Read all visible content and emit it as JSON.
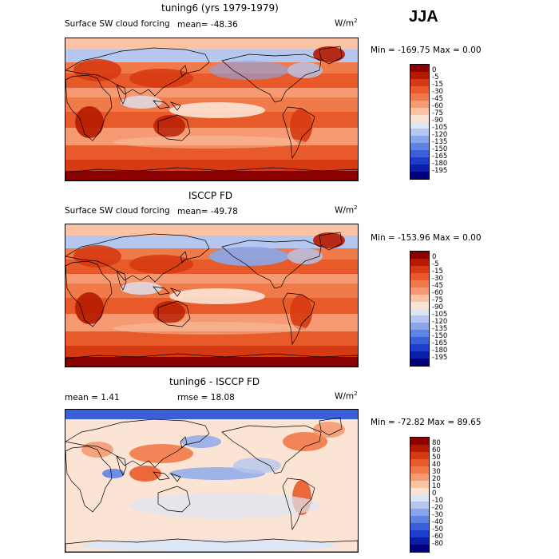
{
  "season": "JJA",
  "unit_base": "W/m",
  "unit_exp": "2",
  "panels": [
    {
      "title": "tuning6 (yrs 1979-1979)",
      "field": "Surface SW cloud forcing",
      "stat_left": "mean=  -48.36",
      "stat_right": "",
      "minmax": "Min = -169.75 Max =    0.00",
      "levels": [
        "0",
        "-5",
        "-15",
        "-30",
        "-45",
        "-60",
        "-75",
        "-90",
        "-105",
        "-120",
        "-135",
        "-150",
        "-165",
        "-180",
        "-195"
      ],
      "colors": [
        "#8b0000",
        "#b51a00",
        "#d63a12",
        "#e85a2a",
        "#f07a4a",
        "#f59a72",
        "#f9c3a4",
        "#fbe4d4",
        "#dde6f5",
        "#b5c7ee",
        "#8aa6ea",
        "#5f83e3",
        "#3a5fd9",
        "#1e3dcc",
        "#0a1fa8",
        "#00007a"
      ]
    },
    {
      "title": "ISCCP FD",
      "field": "Surface SW cloud forcing",
      "stat_left": "mean=  -49.78",
      "stat_right": "",
      "minmax": "Min = -153.96 Max =    0.00",
      "levels": [
        "0",
        "-5",
        "-15",
        "-30",
        "-45",
        "-60",
        "-75",
        "-90",
        "-105",
        "-120",
        "-135",
        "-150",
        "-165",
        "-180",
        "-195"
      ],
      "colors": [
        "#8b0000",
        "#b51a00",
        "#d63a12",
        "#e85a2a",
        "#f07a4a",
        "#f59a72",
        "#f9c3a4",
        "#fbe4d4",
        "#dde6f5",
        "#b5c7ee",
        "#8aa6ea",
        "#5f83e3",
        "#3a5fd9",
        "#1e3dcc",
        "#0a1fa8",
        "#00007a"
      ]
    },
    {
      "title": "tuning6 - ISCCP FD",
      "field": "",
      "stat_left": "mean =    1.41",
      "stat_right": "rmse =   18.08",
      "minmax": "Min =  -72.82 Max =   89.65",
      "levels": [
        "80",
        "60",
        "50",
        "40",
        "30",
        "20",
        "10",
        "0",
        "-10",
        "-20",
        "-30",
        "-40",
        "-50",
        "-60",
        "-80"
      ],
      "colors": [
        "#8b0000",
        "#b51a00",
        "#d63a12",
        "#e85a2a",
        "#f07a4a",
        "#f59a72",
        "#f9c3a4",
        "#fbe4d4",
        "#dde6f5",
        "#b5c7ee",
        "#8aa6ea",
        "#5f83e3",
        "#3a5fd9",
        "#1e3dcc",
        "#0a1fa8",
        "#00007a"
      ]
    }
  ]
}
